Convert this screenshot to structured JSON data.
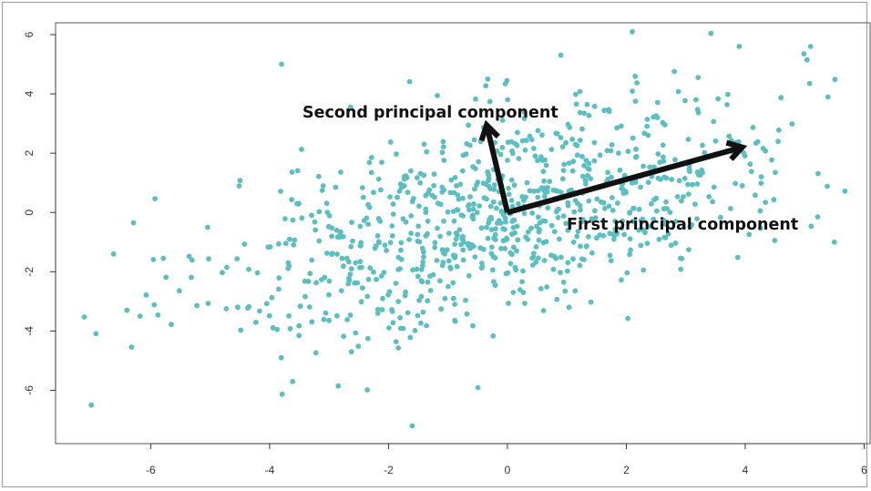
{
  "chart_data": {
    "type": "scatter",
    "title": "",
    "xlabel": "",
    "ylabel": "",
    "xlim": [
      -7.6,
      6.1
    ],
    "ylim": [
      -7.8,
      6.4
    ],
    "x_ticks": [
      "-6",
      "-4",
      "-2",
      "0",
      "2",
      "4",
      "6"
    ],
    "y_ticks": [
      "-6",
      "-4",
      "-2",
      "0",
      "2",
      "4",
      "6"
    ],
    "grid": false,
    "legend": "none",
    "point_color": "#5bbfc2",
    "arrow_color": "#111111",
    "n_points": 900,
    "points_visible_extremes": [
      {
        "x": -7.0,
        "y": -6.5
      },
      {
        "x": -6.4,
        "y": -3.3
      },
      {
        "x": -3.8,
        "y": 5.0
      },
      {
        "x": -1.6,
        "y": -7.2
      },
      {
        "x": 2.1,
        "y": 6.1
      },
      {
        "x": 3.9,
        "y": 5.6
      },
      {
        "x": 5.1,
        "y": 5.6
      },
      {
        "x": 5.5,
        "y": -1.0
      }
    ],
    "series_stats": {
      "mean_x": 0.0,
      "mean_y": 0.0,
      "sd_x": 2.45,
      "sd_y": 2.1,
      "correlation": 0.57
    },
    "annotations": [
      {
        "text": "First principal component",
        "arrow_from": {
          "x": 0,
          "y": 0
        },
        "arrow_to": {
          "x": 3.95,
          "y": 2.2
        }
      },
      {
        "text": "Second principal component",
        "arrow_from": {
          "x": 0,
          "y": 0
        },
        "arrow_to": {
          "x": -0.35,
          "y": 2.95
        }
      }
    ]
  }
}
